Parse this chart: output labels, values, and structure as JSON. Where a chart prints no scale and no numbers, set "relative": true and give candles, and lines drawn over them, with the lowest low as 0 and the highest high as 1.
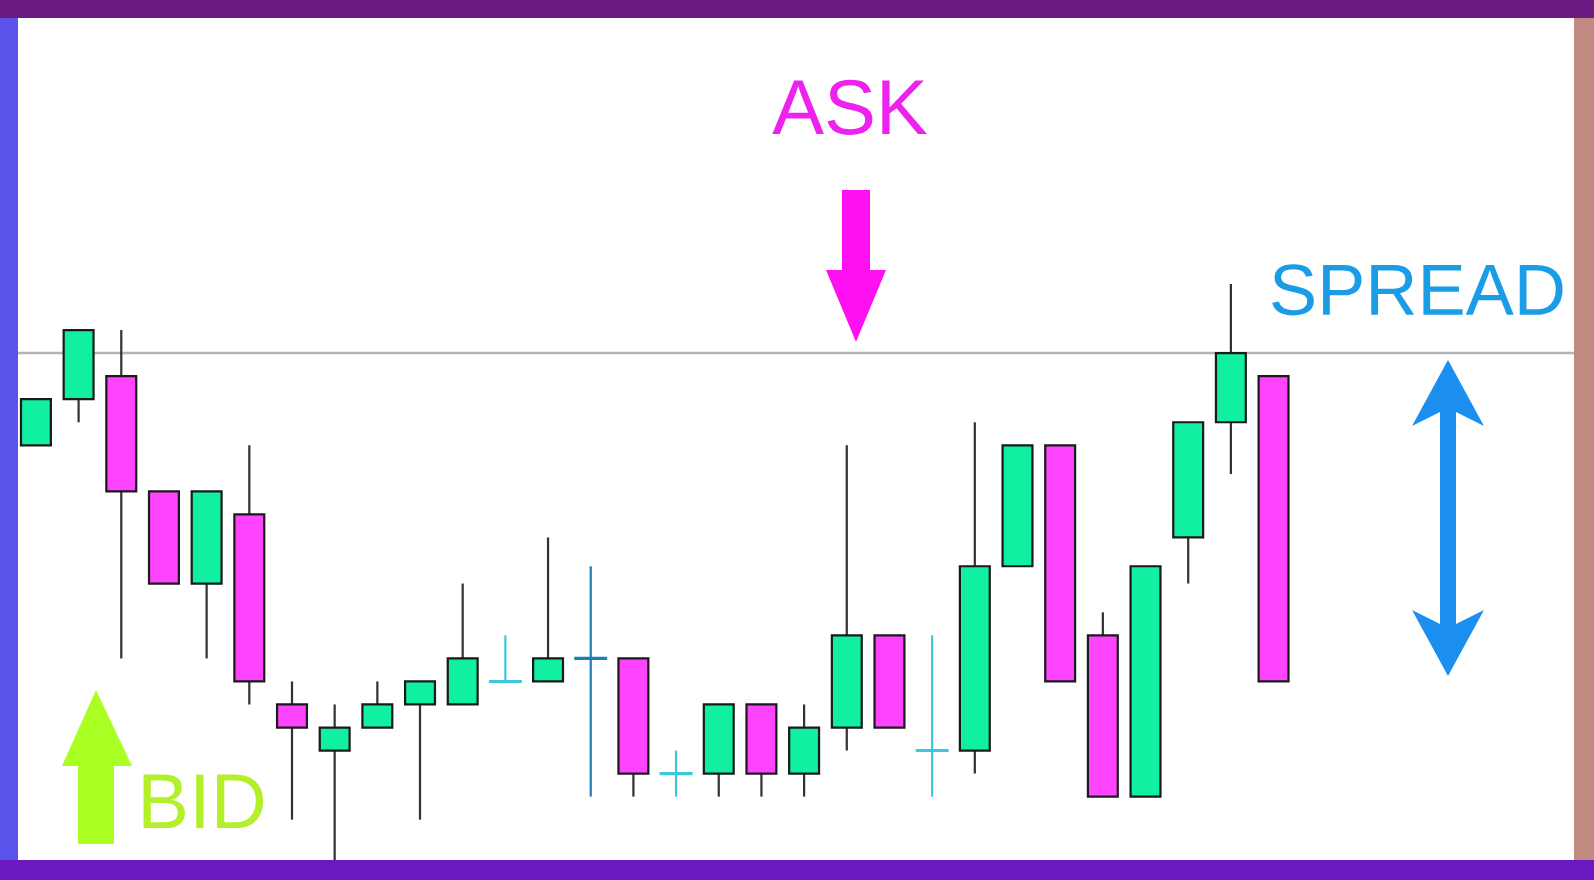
{
  "chart_data": {
    "type": "candlestick",
    "relative": true,
    "categories": [
      null,
      null,
      null,
      null,
      null,
      null,
      null,
      null,
      null,
      null,
      null,
      null,
      null,
      null,
      null,
      null,
      null,
      null,
      null,
      null,
      null,
      null,
      null,
      null,
      null,
      null,
      null,
      null,
      null,
      null
    ],
    "ohlc": [
      [
        0.72,
        0.8,
        0.72,
        0.8
      ],
      [
        0.8,
        0.92,
        0.76,
        0.92
      ],
      [
        0.84,
        0.92,
        0.35,
        0.64
      ],
      [
        0.64,
        0.64,
        0.48,
        0.48
      ],
      [
        0.48,
        0.64,
        0.35,
        0.64
      ],
      [
        0.6,
        0.72,
        0.27,
        0.31
      ],
      [
        0.27,
        0.31,
        0.07,
        0.23
      ],
      [
        0.19,
        0.27,
        0.0,
        0.23
      ],
      [
        0.23,
        0.31,
        0.23,
        0.27
      ],
      [
        0.27,
        0.31,
        0.07,
        0.31
      ],
      [
        0.27,
        0.48,
        0.27,
        0.35
      ],
      [
        0.31,
        0.39,
        0.31,
        0.31
      ],
      [
        0.31,
        0.56,
        0.31,
        0.35
      ],
      [
        0.35,
        0.51,
        0.11,
        0.35
      ],
      [
        0.35,
        0.35,
        0.11,
        0.15
      ],
      [
        0.15,
        0.19,
        0.11,
        0.15
      ],
      [
        0.15,
        0.27,
        0.11,
        0.27
      ],
      [
        0.27,
        0.27,
        0.11,
        0.15
      ],
      [
        0.15,
        0.27,
        0.11,
        0.23
      ],
      [
        0.23,
        0.72,
        0.19,
        0.39
      ],
      [
        0.39,
        0.39,
        0.23,
        0.23
      ],
      [
        0.19,
        0.39,
        0.11,
        0.19
      ],
      [
        0.19,
        0.76,
        0.15,
        0.51
      ],
      [
        0.51,
        0.72,
        0.51,
        0.72
      ],
      [
        0.72,
        0.72,
        0.31,
        0.31
      ],
      [
        0.39,
        0.43,
        0.11,
        0.11
      ],
      [
        0.11,
        0.51,
        0.11,
        0.51
      ],
      [
        0.56,
        0.76,
        0.48,
        0.76
      ],
      [
        0.76,
        1.0,
        0.67,
        0.88
      ],
      [
        0.84,
        0.84,
        0.31,
        0.31
      ]
    ],
    "colors": [
      "#10f0a0",
      "#10f0a0",
      "#ff44ff",
      "#ff44ff",
      "#10f0a0",
      "#ff44ff",
      "#ff44ff",
      "#10f0a0",
      "#10f0a0",
      "#10f0a0",
      "#10f0a0",
      "#3cc8dc",
      "#10f0a0",
      "#1f7fb4",
      "#ff44ff",
      "#3cc8dc",
      "#10f0a0",
      "#ff44ff",
      "#10f0a0",
      "#10f0a0",
      "#ff44ff",
      "#3cc8dc",
      "#10f0a0",
      "#10f0a0",
      "#ff44ff",
      "#ff44ff",
      "#10f0a0",
      "#10f0a0",
      "#10f0a0",
      "#ff44ff"
    ],
    "ref_lines": [
      {
        "axis": "y",
        "value": 0.88,
        "color": "#b4b4b4"
      }
    ],
    "annotations": [
      "ASK",
      "BID",
      "SPREAD"
    ]
  }
}
